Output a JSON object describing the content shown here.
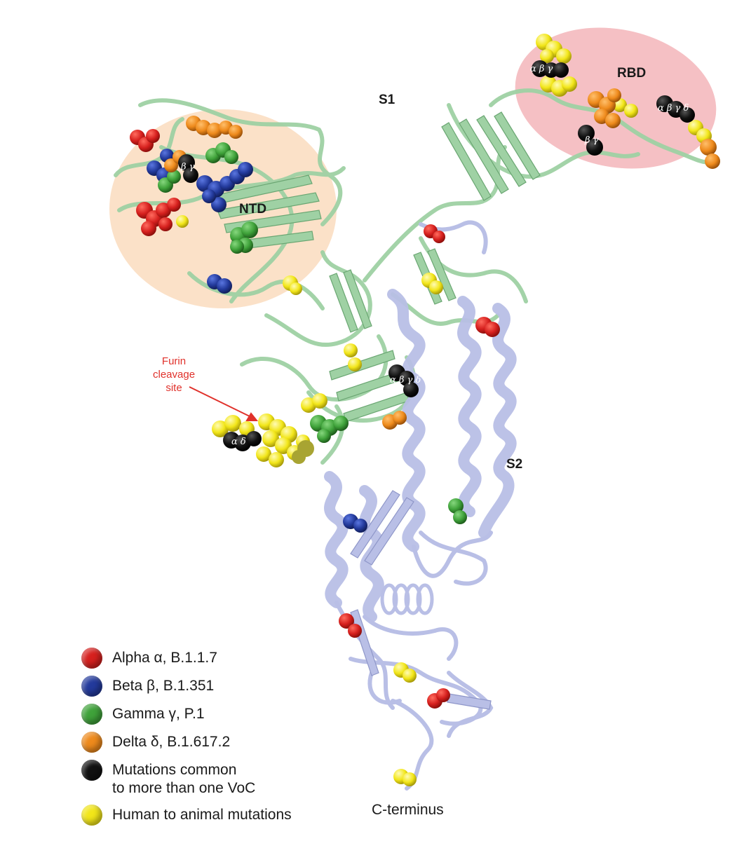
{
  "labels": {
    "s1": "S1",
    "s2": "S2",
    "ntd": "NTD",
    "rbd": "RBD",
    "c_terminus": "C-terminus",
    "furin_line1": "Furin",
    "furin_line2": "cleavage",
    "furin_line3": "site"
  },
  "greek_labels": {
    "ntd_cluster": "β γ",
    "rbd_left": "α β γ",
    "rbd_mid": "β γ",
    "rbd_right": "α β γ δ",
    "center": "α β γ δ",
    "furin": "α δ"
  },
  "legend": {
    "items": [
      {
        "lines": [
          "Alpha α, B.1.1.7"
        ],
        "color": "#d6201e"
      },
      {
        "lines": [
          "Beta β, B.1.351"
        ],
        "color": "#233a9c"
      },
      {
        "lines": [
          "Gamma γ, P.1"
        ],
        "color": "#3fa23a"
      },
      {
        "lines": [
          "Delta δ, B.1.617.2"
        ],
        "color": "#ee8a1c"
      },
      {
        "lines": [
          "Mutations common",
          "to more than one VoC"
        ],
        "color": "#111111"
      },
      {
        "lines": [
          "Human to animal mutations"
        ],
        "color": "#f2e619"
      }
    ]
  },
  "colors": {
    "ntd_region": "#fbe1c8",
    "rbd_region": "#f5c0c4",
    "s1_ribbon": "#9fd1a4",
    "s2_ribbon": "#b9bfe6",
    "alpha": "#d6201e",
    "beta": "#233a9c",
    "gamma": "#3fa23a",
    "delta": "#ee8a1c",
    "common": "#111111",
    "animal": "#f2e619",
    "furin_text": "#e0312b"
  }
}
